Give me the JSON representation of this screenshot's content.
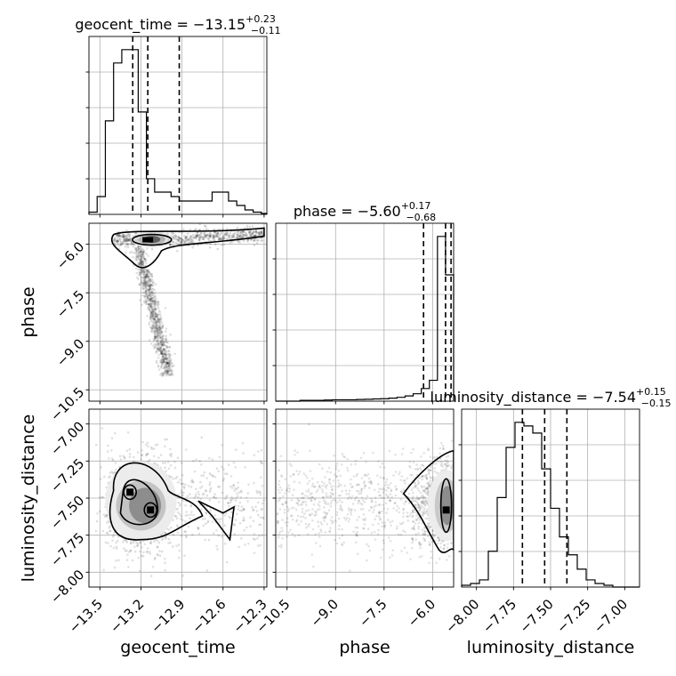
{
  "chart_data": {
    "type": "corner",
    "parameters": [
      "geocent_time",
      "phase",
      "luminosity_distance"
    ],
    "titles": [
      {
        "param": "geocent_time",
        "prefix": "geocent_time = ",
        "value": "−13.15",
        "plus": "+0.23",
        "minus": "−0.11"
      },
      {
        "param": "phase",
        "prefix": "phase = ",
        "value": "−5.60",
        "plus": "+0.17",
        "minus": "−0.68"
      },
      {
        "param": "luminosity_distance",
        "prefix": "luminosity_distance = ",
        "value": "−7.54",
        "plus": "+0.15",
        "minus": "−0.15"
      }
    ],
    "axes": {
      "geocent_time": {
        "range": [
          -13.58,
          -12.28
        ],
        "ticks": [
          -13.5,
          -13.2,
          -12.9,
          -12.6,
          -12.3
        ],
        "tick_labels": [
          "−13.5",
          "−13.2",
          "−12.9",
          "−12.6",
          "−12.3"
        ],
        "quantiles": [
          -13.26,
          -13.15,
          -12.92
        ]
      },
      "phase": {
        "range": [
          -10.85,
          -5.35
        ],
        "ticks": [
          -10.5,
          -9.0,
          -7.5,
          -6.0
        ],
        "tick_labels": [
          "−10.5",
          "−9.0",
          "−7.5",
          "−6.0"
        ],
        "quantiles": [
          -6.28,
          -5.6,
          -5.43
        ]
      },
      "luminosity_distance": {
        "range": [
          -8.1,
          -6.9
        ],
        "ticks": [
          -8.0,
          -7.75,
          -7.5,
          -7.25,
          -7.0
        ],
        "tick_labels": [
          "−8.00",
          "−7.75",
          "−7.50",
          "−7.25",
          "−7.00"
        ],
        "quantiles": [
          -7.69,
          -7.54,
          -7.39
        ]
      }
    },
    "histograms": {
      "geocent_time": {
        "bin_edges": [
          -13.58,
          -13.52,
          -13.46,
          -13.4,
          -13.34,
          -13.28,
          -13.22,
          -13.16,
          -13.1,
          -13.04,
          -12.98,
          -12.92,
          -12.86,
          -12.8,
          -12.74,
          -12.68,
          -12.62,
          -12.56,
          -12.5,
          -12.44,
          -12.38,
          -12.32,
          -12.28
        ],
        "counts": [
          0.5,
          4,
          21,
          34,
          37,
          37,
          23,
          8,
          5,
          5,
          4,
          3,
          3,
          3,
          3,
          5,
          5,
          3,
          2,
          1,
          0.5,
          0.2
        ]
      },
      "phase": {
        "bin_edges": [
          -10.85,
          -10.6,
          -10.35,
          -10.1,
          -9.85,
          -9.6,
          -9.35,
          -9.1,
          -8.85,
          -8.6,
          -8.35,
          -8.1,
          -7.85,
          -7.6,
          -7.35,
          -7.1,
          -6.85,
          -6.6,
          -6.35,
          -6.1,
          -5.85,
          -5.6,
          -5.35
        ],
        "counts": [
          0,
          0,
          0,
          0.3,
          0.3,
          0.3,
          0.4,
          0.5,
          0.5,
          0.5,
          0.6,
          0.7,
          0.8,
          0.9,
          1.1,
          1.4,
          1.9,
          2.7,
          4.6,
          7.6,
          60,
          46
        ]
      },
      "luminosity_distance": {
        "bin_edges": [
          -8.1,
          -8.04,
          -7.98,
          -7.92,
          -7.86,
          -7.8,
          -7.74,
          -7.68,
          -7.62,
          -7.56,
          -7.5,
          -7.44,
          -7.38,
          -7.32,
          -7.26,
          -7.2,
          -7.14,
          -7.08,
          -7.02,
          -6.96,
          -6.9
        ],
        "counts": [
          0.5,
          1,
          2,
          10,
          25,
          39,
          46,
          45,
          43,
          33,
          22,
          14,
          9,
          5,
          2,
          1,
          0.5,
          0,
          0,
          0
        ]
      }
    },
    "credible_regions": [
      {
        "x": "geocent_time",
        "y": "phase",
        "peak": [
          -13.12,
          -5.85
        ]
      },
      {
        "x": "geocent_time",
        "y": "luminosity_distance",
        "peaks": [
          [
            -13.28,
            -7.46
          ],
          [
            -13.13,
            -7.58
          ]
        ]
      },
      {
        "x": "phase",
        "y": "luminosity_distance",
        "peak": [
          -5.6,
          -7.58
        ]
      }
    ],
    "grid": true
  }
}
